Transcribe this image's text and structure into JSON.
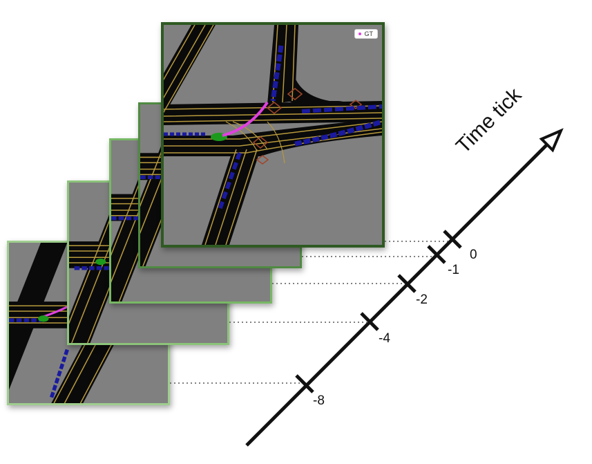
{
  "axis": {
    "title": "Time tick",
    "ticks": [
      {
        "label": "0",
        "value": 0
      },
      {
        "label": "-1",
        "value": -1
      },
      {
        "label": "-2",
        "value": -2
      },
      {
        "label": "-4",
        "value": -4
      },
      {
        "label": "-8",
        "value": -8
      }
    ]
  },
  "legend": {
    "label": "GT",
    "marker_color": "#e040e0"
  },
  "frames": [
    {
      "tick": "-8",
      "border_color": "#9fce8e"
    },
    {
      "tick": "-4",
      "border_color": "#8cc47a"
    },
    {
      "tick": "-2",
      "border_color": "#78b865"
    },
    {
      "tick": "-1",
      "border_color": "#4f8a42"
    },
    {
      "tick": "0",
      "border_color": "#2f5a22"
    }
  ],
  "colors": {
    "background": "#808080",
    "road": "#0a0a0a",
    "lane": "#b89a3c",
    "vehicles": "#1a1aa0",
    "ego": "#1c9a1c",
    "ground_truth": "#e040e0",
    "crosswalk": "#a0452a"
  }
}
